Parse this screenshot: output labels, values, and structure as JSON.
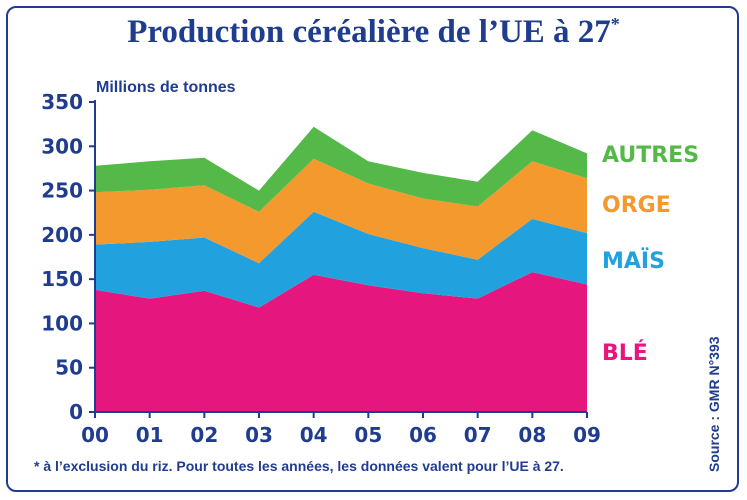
{
  "chart_data": {
    "type": "area",
    "stacked": true,
    "title": "Production céréalière de l’UE à 27",
    "title_mark": "*",
    "ylabel": "Millions de tonnes",
    "ylim": [
      0,
      350
    ],
    "yticks": [
      0,
      50,
      100,
      150,
      200,
      250,
      300,
      350
    ],
    "categories": [
      "00",
      "01",
      "02",
      "03",
      "04",
      "05",
      "06",
      "07",
      "08",
      "09"
    ],
    "series": [
      {
        "name": "BLÉ",
        "color": "#e5177e",
        "values": [
          138,
          128,
          137,
          118,
          155,
          143,
          134,
          128,
          158,
          144
        ]
      },
      {
        "name": "MAÏS",
        "color": "#21a2df",
        "values": [
          51,
          64,
          60,
          50,
          71,
          58,
          51,
          44,
          60,
          58
        ]
      },
      {
        "name": "ORGE",
        "color": "#f4992e",
        "values": [
          59,
          59,
          59,
          58,
          60,
          57,
          56,
          60,
          65,
          62
        ]
      },
      {
        "name": "AUTRES",
        "color": "#54b948",
        "values": [
          30,
          32,
          31,
          24,
          36,
          25,
          29,
          28,
          35,
          28
        ]
      }
    ],
    "grid": false,
    "footnote": "* à l’exclusion du riz. Pour toutes les années, les données valent pour l’UE à 27.",
    "source": "Source : GMR N°393"
  }
}
